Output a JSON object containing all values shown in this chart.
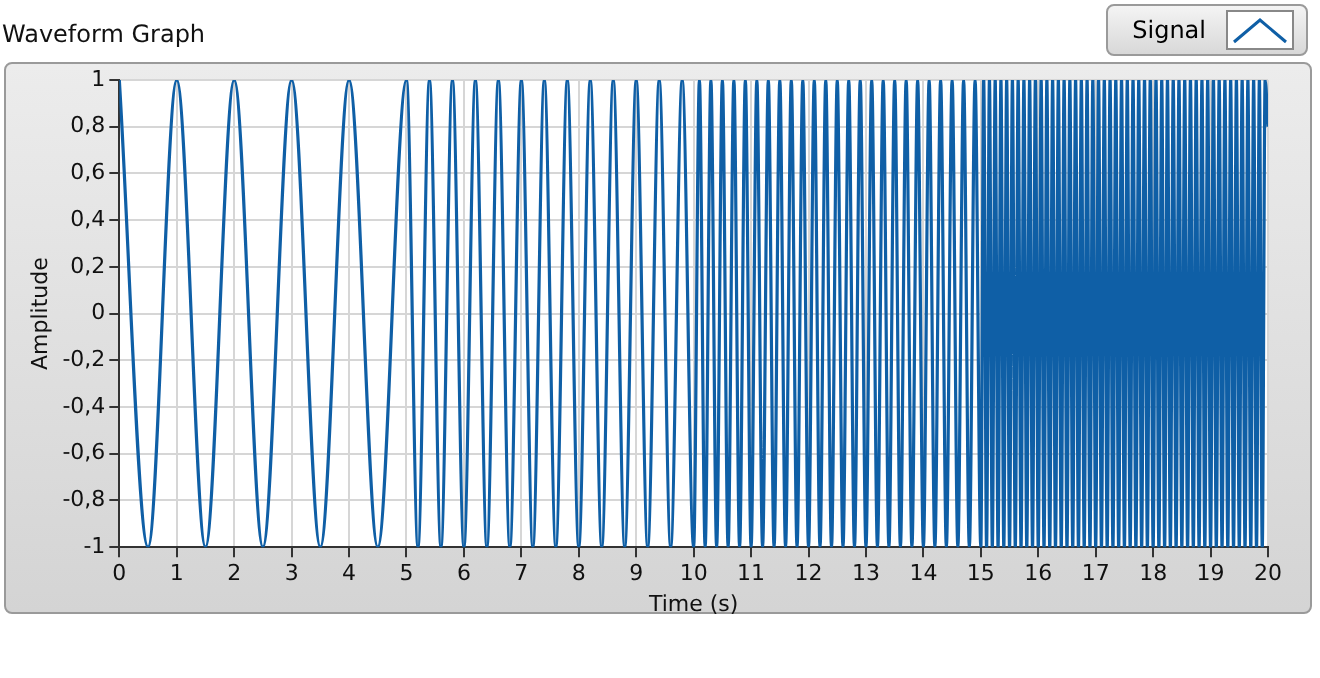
{
  "chart_data": {
    "type": "line",
    "title": "Waveform Graph",
    "xlabel": "Time (s)",
    "ylabel": "Amplitude",
    "x": [
      0,
      0.5,
      1,
      1.5,
      2,
      2.5,
      3,
      3.5,
      4,
      4.5,
      5,
      5.2,
      5.4,
      5.6,
      5.8,
      6,
      6.2,
      6.4,
      6.6,
      6.8,
      7,
      7.2,
      7.4,
      7.6,
      7.8,
      8,
      8.2,
      8.4,
      8.6,
      8.8,
      9,
      9.2,
      9.4,
      9.6,
      9.8,
      10,
      10.1,
      10.2,
      10.3,
      10.4,
      10.5,
      10.6,
      10.7,
      10.8,
      10.9,
      11,
      11.1,
      11.2,
      11.3,
      11.4,
      11.5,
      11.6,
      11.7,
      11.8,
      11.9,
      12,
      12.1,
      12.2,
      12.3,
      12.4,
      12.5,
      12.6,
      12.7,
      12.8,
      12.9,
      13,
      13.1,
      13.2,
      13.3,
      13.4,
      13.5,
      13.6,
      13.7,
      13.8,
      13.9,
      14,
      14.1,
      14.2,
      14.3,
      14.4,
      14.5,
      14.6,
      14.7,
      14.8,
      14.9,
      15,
      15.05,
      15.1,
      15.15,
      15.2,
      15.25,
      15.3,
      15.35,
      15.4,
      15.45,
      15.5,
      15.55,
      15.6,
      15.65,
      15.7,
      15.75,
      15.8,
      15.85,
      15.9,
      15.95,
      16,
      16.05,
      16.1,
      16.15,
      16.2,
      16.25,
      16.3,
      16.35,
      16.4,
      16.45,
      16.5,
      16.55,
      16.6,
      16.65,
      16.7,
      16.75,
      16.8,
      16.85,
      16.9,
      16.95,
      17,
      17.05,
      17.1,
      17.15,
      17.2,
      17.25,
      17.3,
      17.35,
      17.4,
      17.45,
      17.5,
      17.55,
      17.6,
      17.65,
      17.7,
      17.75,
      17.8,
      17.85,
      17.9,
      17.95,
      18,
      18.05,
      18.1,
      18.15,
      18.2,
      18.25,
      18.3,
      18.35,
      18.4,
      18.45,
      18.5,
      18.55,
      18.6,
      18.65,
      18.7,
      18.75,
      18.8,
      18.85,
      18.9,
      18.95,
      19,
      19.05,
      19.1,
      19.15,
      19.2,
      19.25,
      19.3,
      19.35,
      19.4,
      19.45,
      19.5,
      19.55,
      19.6,
      19.65,
      19.7,
      19.75,
      19.8,
      19.85,
      19.9,
      19.95,
      20
    ],
    "series": [
      {
        "name": "Signal",
        "color": "#0f5fa6",
        "values": [
          1,
          -1,
          1,
          -1,
          1,
          -1,
          1,
          -1,
          1,
          -1,
          1,
          -1,
          1,
          -1,
          1,
          -1,
          1,
          -1,
          1,
          -1,
          1,
          -1,
          1,
          -1,
          1,
          -1,
          1,
          -1,
          1,
          -1,
          1,
          -1,
          1,
          -1,
          1,
          -1,
          1,
          -1,
          1,
          -1,
          1,
          -1,
          1,
          -1,
          1,
          -1,
          1,
          -1,
          1,
          -1,
          1,
          -1,
          1,
          -1,
          1,
          -1,
          1,
          -1,
          1,
          -1,
          1,
          -1,
          1,
          -1,
          1,
          -1,
          1,
          -1,
          1,
          -1,
          1,
          -1,
          1,
          -1,
          1,
          -1,
          1,
          -1,
          1,
          -1,
          1,
          -1,
          1,
          -1,
          1,
          -1,
          1,
          -1,
          1,
          -1,
          1,
          -1,
          1,
          -1,
          1,
          -1,
          1,
          -1,
          1,
          -1,
          1,
          -1,
          1,
          -1,
          1,
          -1,
          1,
          -1,
          1,
          -1,
          1,
          -1,
          1,
          -1,
          1,
          -1,
          1,
          -1,
          1,
          -1,
          1,
          -1,
          1,
          -1,
          1,
          -1,
          1,
          -1,
          1,
          -1,
          1,
          -1,
          1,
          -1,
          1,
          -1,
          1,
          -1,
          1,
          -1,
          1,
          -1,
          1,
          -1,
          1,
          -1,
          1,
          -1,
          1,
          -1,
          1,
          -1,
          1,
          -1,
          1,
          -1,
          1,
          -1,
          1,
          -1,
          1,
          -1,
          1,
          -1,
          1,
          -1,
          1,
          -1,
          1,
          -1,
          1,
          -1,
          1,
          -1,
          1,
          -1,
          1,
          -1,
          1,
          -1,
          1,
          -1,
          1,
          -1,
          1,
          0.8
        ]
      }
    ],
    "xlim": [
      0,
      20
    ],
    "xticks": [
      0,
      1,
      2,
      3,
      4,
      5,
      6,
      7,
      8,
      9,
      10,
      11,
      12,
      13,
      14,
      15,
      16,
      17,
      18,
      19,
      20
    ],
    "ylim": [
      -1,
      1
    ],
    "yticks": [
      {
        "value": -1,
        "label": "-1"
      },
      {
        "value": -0.8,
        "label": "-0,8"
      },
      {
        "value": -0.6,
        "label": "-0,6"
      },
      {
        "value": -0.4,
        "label": "-0,4"
      },
      {
        "value": -0.2,
        "label": "-0,2"
      },
      {
        "value": 0,
        "label": "0"
      },
      {
        "value": 0.2,
        "label": "0,2"
      },
      {
        "value": 0.4,
        "label": "0,4"
      },
      {
        "value": 0.6,
        "label": "0,6"
      },
      {
        "value": 0.8,
        "label": "0,8"
      },
      {
        "value": 1,
        "label": "1"
      }
    ],
    "grid": true,
    "legend": "top right"
  }
}
